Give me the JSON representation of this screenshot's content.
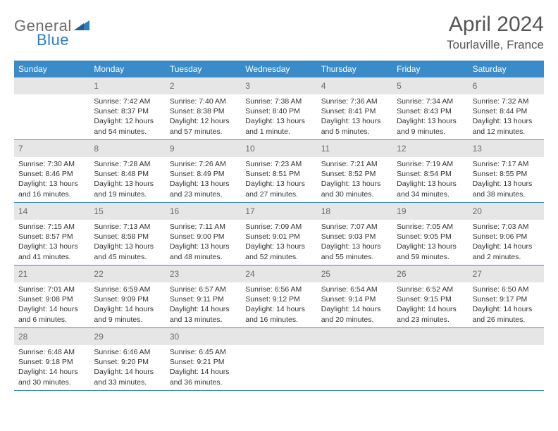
{
  "brand": {
    "part1": "General",
    "part2": "Blue"
  },
  "title": "April 2024",
  "location": "Tourlaville, France",
  "day_names": [
    "Sunday",
    "Monday",
    "Tuesday",
    "Wednesday",
    "Thursday",
    "Friday",
    "Saturday"
  ],
  "colors": {
    "header_bg": "#3b8bc9",
    "header_text": "#ffffff",
    "numrow_bg": "#e6e6e6",
    "week_border": "#3b8bc9",
    "logo_gray": "#6b6b6b",
    "logo_blue": "#2d7fc1",
    "title_color": "#555555",
    "body_text": "#333333",
    "page_bg": "#ffffff"
  },
  "weeks": [
    [
      {
        "n": ""
      },
      {
        "n": "1",
        "sr": "7:42 AM",
        "ss": "8:37 PM",
        "dl": "12 hours and 54 minutes."
      },
      {
        "n": "2",
        "sr": "7:40 AM",
        "ss": "8:38 PM",
        "dl": "12 hours and 57 minutes."
      },
      {
        "n": "3",
        "sr": "7:38 AM",
        "ss": "8:40 PM",
        "dl": "13 hours and 1 minute."
      },
      {
        "n": "4",
        "sr": "7:36 AM",
        "ss": "8:41 PM",
        "dl": "13 hours and 5 minutes."
      },
      {
        "n": "5",
        "sr": "7:34 AM",
        "ss": "8:43 PM",
        "dl": "13 hours and 9 minutes."
      },
      {
        "n": "6",
        "sr": "7:32 AM",
        "ss": "8:44 PM",
        "dl": "13 hours and 12 minutes."
      }
    ],
    [
      {
        "n": "7",
        "sr": "7:30 AM",
        "ss": "8:46 PM",
        "dl": "13 hours and 16 minutes."
      },
      {
        "n": "8",
        "sr": "7:28 AM",
        "ss": "8:48 PM",
        "dl": "13 hours and 19 minutes."
      },
      {
        "n": "9",
        "sr": "7:26 AM",
        "ss": "8:49 PM",
        "dl": "13 hours and 23 minutes."
      },
      {
        "n": "10",
        "sr": "7:23 AM",
        "ss": "8:51 PM",
        "dl": "13 hours and 27 minutes."
      },
      {
        "n": "11",
        "sr": "7:21 AM",
        "ss": "8:52 PM",
        "dl": "13 hours and 30 minutes."
      },
      {
        "n": "12",
        "sr": "7:19 AM",
        "ss": "8:54 PM",
        "dl": "13 hours and 34 minutes."
      },
      {
        "n": "13",
        "sr": "7:17 AM",
        "ss": "8:55 PM",
        "dl": "13 hours and 38 minutes."
      }
    ],
    [
      {
        "n": "14",
        "sr": "7:15 AM",
        "ss": "8:57 PM",
        "dl": "13 hours and 41 minutes."
      },
      {
        "n": "15",
        "sr": "7:13 AM",
        "ss": "8:58 PM",
        "dl": "13 hours and 45 minutes."
      },
      {
        "n": "16",
        "sr": "7:11 AM",
        "ss": "9:00 PM",
        "dl": "13 hours and 48 minutes."
      },
      {
        "n": "17",
        "sr": "7:09 AM",
        "ss": "9:01 PM",
        "dl": "13 hours and 52 minutes."
      },
      {
        "n": "18",
        "sr": "7:07 AM",
        "ss": "9:03 PM",
        "dl": "13 hours and 55 minutes."
      },
      {
        "n": "19",
        "sr": "7:05 AM",
        "ss": "9:05 PM",
        "dl": "13 hours and 59 minutes."
      },
      {
        "n": "20",
        "sr": "7:03 AM",
        "ss": "9:06 PM",
        "dl": "14 hours and 2 minutes."
      }
    ],
    [
      {
        "n": "21",
        "sr": "7:01 AM",
        "ss": "9:08 PM",
        "dl": "14 hours and 6 minutes."
      },
      {
        "n": "22",
        "sr": "6:59 AM",
        "ss": "9:09 PM",
        "dl": "14 hours and 9 minutes."
      },
      {
        "n": "23",
        "sr": "6:57 AM",
        "ss": "9:11 PM",
        "dl": "14 hours and 13 minutes."
      },
      {
        "n": "24",
        "sr": "6:56 AM",
        "ss": "9:12 PM",
        "dl": "14 hours and 16 minutes."
      },
      {
        "n": "25",
        "sr": "6:54 AM",
        "ss": "9:14 PM",
        "dl": "14 hours and 20 minutes."
      },
      {
        "n": "26",
        "sr": "6:52 AM",
        "ss": "9:15 PM",
        "dl": "14 hours and 23 minutes."
      },
      {
        "n": "27",
        "sr": "6:50 AM",
        "ss": "9:17 PM",
        "dl": "14 hours and 26 minutes."
      }
    ],
    [
      {
        "n": "28",
        "sr": "6:48 AM",
        "ss": "9:18 PM",
        "dl": "14 hours and 30 minutes."
      },
      {
        "n": "29",
        "sr": "6:46 AM",
        "ss": "9:20 PM",
        "dl": "14 hours and 33 minutes."
      },
      {
        "n": "30",
        "sr": "6:45 AM",
        "ss": "9:21 PM",
        "dl": "14 hours and 36 minutes."
      },
      {
        "n": ""
      },
      {
        "n": ""
      },
      {
        "n": ""
      },
      {
        "n": ""
      }
    ]
  ],
  "labels": {
    "sunrise": "Sunrise: ",
    "sunset": "Sunset: ",
    "daylight": "Daylight: "
  }
}
